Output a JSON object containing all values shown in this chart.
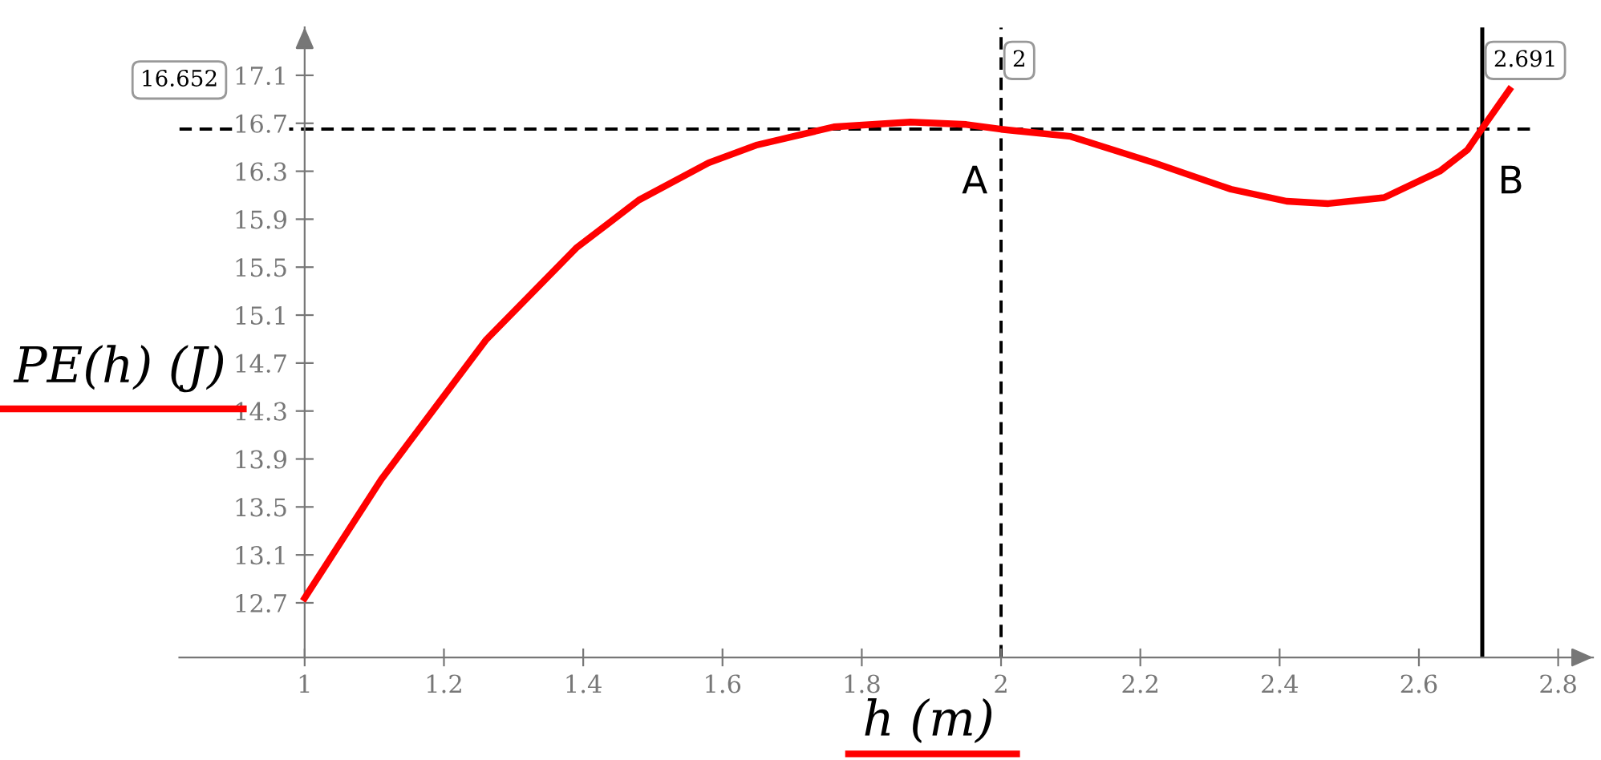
{
  "chart_data": {
    "type": "line",
    "xlabel": "h (m)",
    "ylabel": "PE(h) (J)",
    "x": [
      1.0,
      1.11,
      1.26,
      1.39,
      1.48,
      1.58,
      1.65,
      1.76,
      1.87,
      1.95,
      2.0,
      2.1,
      2.22,
      2.33,
      2.41,
      2.47,
      2.55,
      2.63,
      2.67,
      2.69,
      2.73
    ],
    "series": [
      {
        "color": "#ff0000",
        "values": [
          12.74,
          13.73,
          14.89,
          15.66,
          16.06,
          16.37,
          16.52,
          16.67,
          16.71,
          16.69,
          16.65,
          16.59,
          16.37,
          16.15,
          16.05,
          16.03,
          16.08,
          16.3,
          16.48,
          16.65,
          16.98
        ]
      }
    ],
    "xlim": [
      0.82,
      2.85
    ],
    "ylim": [
      12.245,
      17.5
    ],
    "xticks": [
      1,
      1.2,
      1.4,
      1.6,
      1.8,
      2,
      2.2,
      2.4,
      2.6,
      2.8
    ],
    "yticks": [
      12.7,
      13.1,
      13.5,
      13.9,
      14.3,
      14.7,
      15.1,
      15.5,
      15.9,
      16.3,
      16.7,
      17.1
    ],
    "ref_lines": [
      {
        "axis": "y",
        "value": 16.652,
        "label": "16.652",
        "color": "#000000",
        "line_style": "dashed"
      },
      {
        "axis": "x",
        "value": 2,
        "label": "2",
        "color": "#000000",
        "line_style": "dashed"
      },
      {
        "axis": "x",
        "value": 2.691,
        "label": "2.691",
        "color": "#000000",
        "line_style": "solid"
      }
    ],
    "annotations": [
      {
        "text": "A",
        "x": 2,
        "y": 16.652
      },
      {
        "text": "B",
        "x": 2.691,
        "y": 16.652
      }
    ],
    "grid": false,
    "legend": false,
    "marker": "none",
    "line_style": "solid"
  }
}
